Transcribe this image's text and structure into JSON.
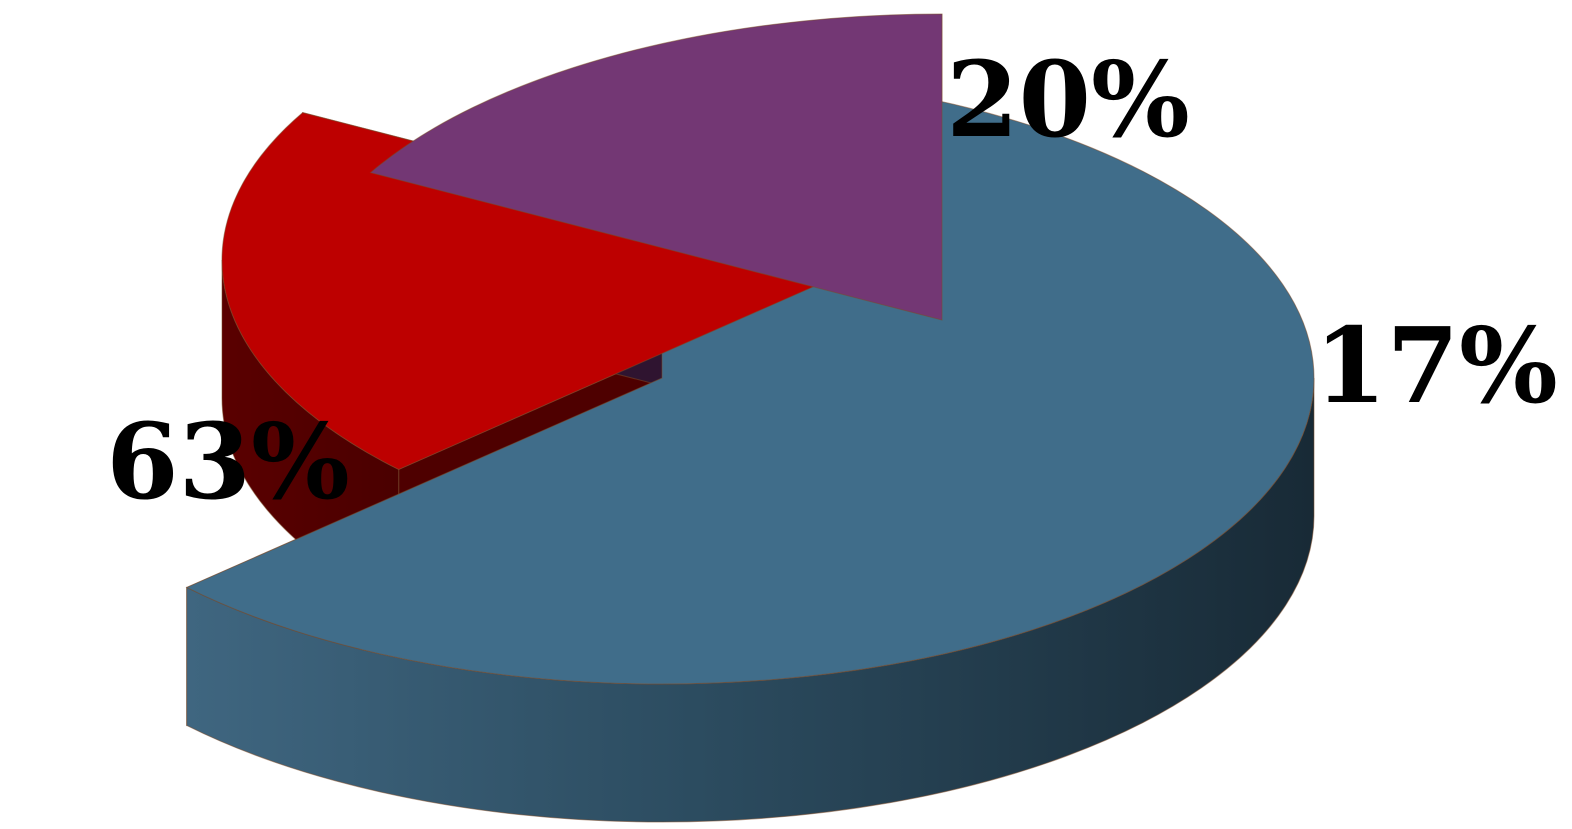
{
  "chart_data": {
    "type": "pie",
    "title": "",
    "legend": "none",
    "slices": [
      {
        "label": "63%",
        "value": 63,
        "color": "#406D8A",
        "exploded": false
      },
      {
        "label": "20%",
        "value": 20,
        "color": "#BD0000",
        "exploded": true
      },
      {
        "label": "17%",
        "value": 17,
        "color": "#733774",
        "exploded": true
      }
    ]
  }
}
